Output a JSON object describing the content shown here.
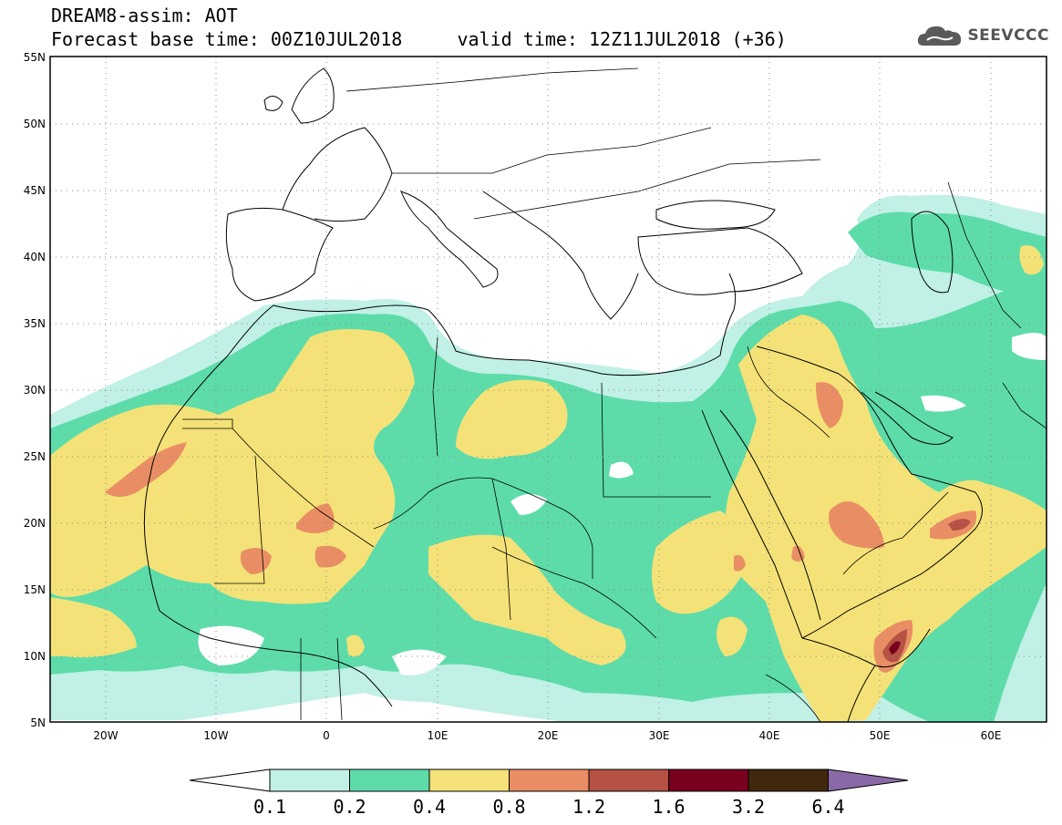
{
  "header": {
    "line1": "DREAM8-assim: AOT",
    "line2": "Forecast base time: 00Z10JUL2018     valid time: 12Z11JUL2018 (+36)"
  },
  "logo": {
    "text": "SEEVCCC",
    "icon": "cloud-icon"
  },
  "map": {
    "variable": "AOT",
    "lon_range": [
      -25,
      65
    ],
    "lat_range": [
      5,
      55
    ],
    "lat_ticks": [
      "55N",
      "50N",
      "45N",
      "40N",
      "35N",
      "30N",
      "25N",
      "20N",
      "15N",
      "10N",
      "5N"
    ],
    "lon_ticks": [
      "20W",
      "10W",
      "0",
      "10E",
      "20E",
      "30E",
      "40E",
      "50E",
      "60E"
    ],
    "gridlines": "dotted"
  },
  "colorbar": {
    "levels": [
      "0.1",
      "0.2",
      "0.4",
      "0.8",
      "1.2",
      "1.6",
      "3.2",
      "6.4"
    ],
    "colors": [
      "#ffffff",
      "#c0f0e6",
      "#5ddcaa",
      "#f4e278",
      "#e98e64",
      "#b55244",
      "#78001e",
      "#40280f",
      "#8a6aa6"
    ]
  }
}
